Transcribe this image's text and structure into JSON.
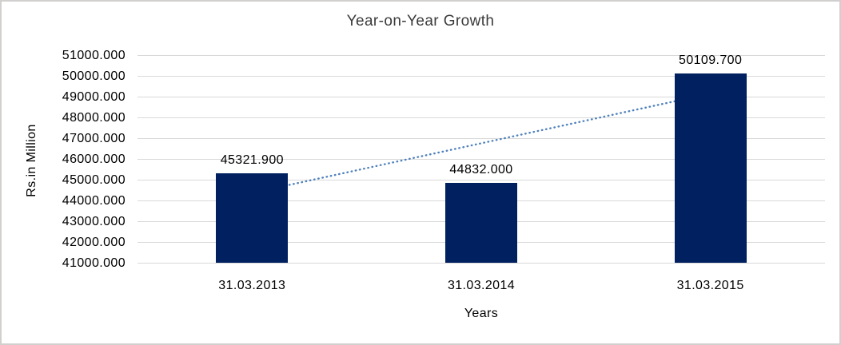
{
  "window": {
    "background": "#ffffff",
    "frame_border_color": "#d2cfcf"
  },
  "chart_data": {
    "type": "bar",
    "title": "Year-on-Year Growth",
    "categories": [
      "31.03.2013",
      "31.03.2014",
      "31.03.2015"
    ],
    "values": [
      45321.9,
      44832.0,
      50109.7
    ],
    "data_labels": [
      "45321.900",
      "44832.000",
      "50109.700"
    ],
    "xlabel": "Years",
    "ylabel": "Rs.in Million",
    "ylim": [
      41000,
      51000
    ],
    "y_tick_step": 1000,
    "y_tick_labels": [
      "41000.000",
      "42000.000",
      "43000.000",
      "44000.000",
      "45000.000",
      "46000.000",
      "47000.000",
      "48000.000",
      "49000.000",
      "50000.000",
      "51000.000"
    ],
    "grid": true,
    "legend": "none",
    "bar_color": "#002060",
    "gridline_color": "#d9d9d9",
    "text_color": "#000000",
    "title_color": "#3b3b3b",
    "trendline": {
      "type": "linear",
      "style": "dotted",
      "color": "#4f81bd",
      "start_value": 44360.6,
      "end_value": 49148.4
    }
  }
}
